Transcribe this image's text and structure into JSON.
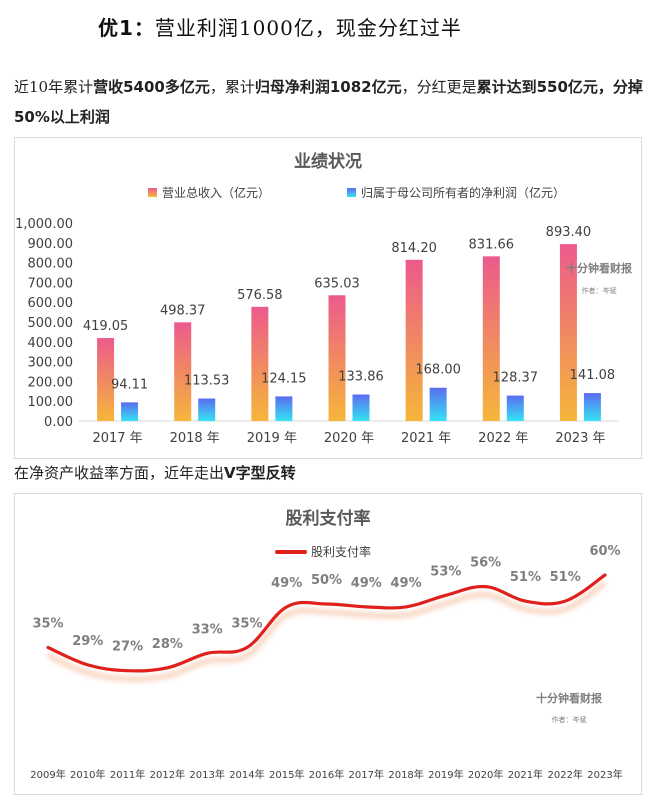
{
  "heading": {
    "prefix": "优1：",
    "text": "营业利润1000亿，现金分红过半"
  },
  "intro": {
    "p1": "近10年累计",
    "b1": "营收5400多亿元",
    "p2": "，累计",
    "b2": "归母净利润1082亿元",
    "p3": "，分红更是",
    "b3": "累计达到550亿元，分掉50%以上利润"
  },
  "mid_text": {
    "p1": "在净资产收益率方面，近年走出",
    "b1": "V字型反转"
  },
  "chart_data": [
    {
      "type": "bar",
      "title": "业绩状况",
      "categories": [
        "2017 年",
        "2018 年",
        "2019 年",
        "2020 年",
        "2021 年",
        "2022 年",
        "2023 年"
      ],
      "series": [
        {
          "name": "营业总收入（亿元）",
          "values": [
            419.05,
            498.37,
            576.58,
            635.03,
            814.2,
            831.66,
            893.4
          ],
          "labels": [
            "419.05",
            "498.37",
            "576.58",
            "635.03",
            "814.20",
            "831.66",
            "893.40"
          ],
          "color_top": "#ec5a8c",
          "color_bottom": "#f5b63a"
        },
        {
          "name": "归属于母公司所有者的净利润（亿元）",
          "values": [
            94.11,
            113.53,
            124.15,
            133.86,
            168.0,
            128.37,
            141.08
          ],
          "labels": [
            "94.11",
            "113.53",
            "124.15",
            "133.86",
            "168.00",
            "128.37",
            "141.08"
          ],
          "color_top": "#5b6cf0",
          "color_bottom": "#35e3f3"
        }
      ],
      "ylim": [
        0,
        1000
      ],
      "yticks": [
        "0.00",
        "100.00",
        "200.00",
        "300.00",
        "400.00",
        "500.00",
        "600.00",
        "700.00",
        "800.00",
        "900.00",
        "1,000.00"
      ],
      "legend_position": "top",
      "watermark": {
        "main": "十分钟看财报",
        "sub": "作者：岑斌"
      }
    },
    {
      "type": "line",
      "title": "股利支付率",
      "series": [
        {
          "name": "股利支付率",
          "values": [
            35,
            29,
            27,
            28,
            33,
            35,
            49,
            50,
            49,
            49,
            53,
            56,
            51,
            51,
            60
          ],
          "color": "#e0201b"
        }
      ],
      "categories": [
        "2009年",
        "2010年",
        "2011年",
        "2012年",
        "2013年",
        "2014年",
        "2015年",
        "2016年",
        "2017年",
        "2018年",
        "2019年",
        "2020年",
        "2021年",
        "2022年",
        "2023年"
      ],
      "labels": [
        "35%",
        "29%",
        "27%",
        "28%",
        "33%",
        "35%",
        "49%",
        "50%",
        "49%",
        "49%",
        "53%",
        "56%",
        "51%",
        "51%",
        "60%"
      ],
      "ylim": [
        0,
        70
      ],
      "legend_position": "top",
      "watermark": {
        "main": "十分钟看财报",
        "sub": "作者：岑斌"
      }
    }
  ]
}
